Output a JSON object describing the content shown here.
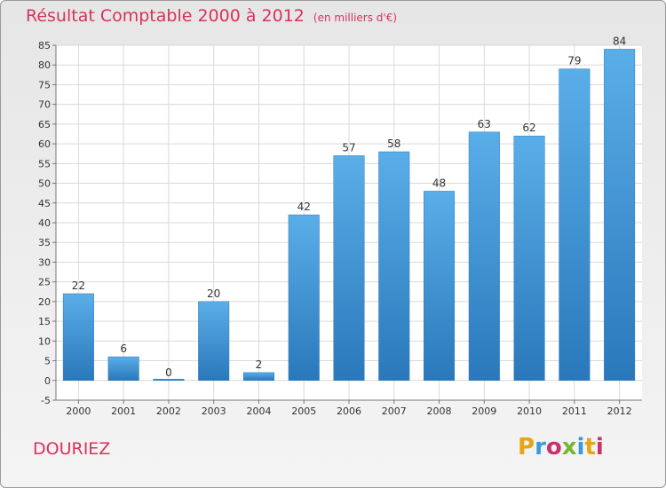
{
  "chart_data": {
    "type": "bar",
    "title": "Résultat Comptable 2000 à 2012",
    "unit_label": "(en milliers d'€)",
    "categories": [
      "2000",
      "2001",
      "2002",
      "2003",
      "2004",
      "2005",
      "2006",
      "2007",
      "2008",
      "2009",
      "2010",
      "2011",
      "2012"
    ],
    "values": [
      22,
      6,
      0,
      20,
      2,
      42,
      57,
      58,
      48,
      63,
      62,
      79,
      84
    ],
    "ylim": [
      -5,
      85
    ],
    "yticks": [
      -5,
      0,
      5,
      10,
      15,
      20,
      25,
      30,
      35,
      40,
      45,
      50,
      55,
      60,
      65,
      70,
      75,
      80,
      85
    ],
    "xlabel": "",
    "ylabel": "",
    "grid": true,
    "bar_color_top": "#5aaee8",
    "bar_color_bottom": "#2a78bb"
  },
  "footer": {
    "commune": "DOURIEZ",
    "logo_letters": [
      "P",
      "r",
      "o",
      "x",
      "i",
      "t",
      "i"
    ],
    "logo_colors": [
      "#e8a317",
      "#3a9ad9",
      "#c7336a",
      "#79b530",
      "#3a9ad9",
      "#e8a317",
      "#c7336a"
    ]
  }
}
